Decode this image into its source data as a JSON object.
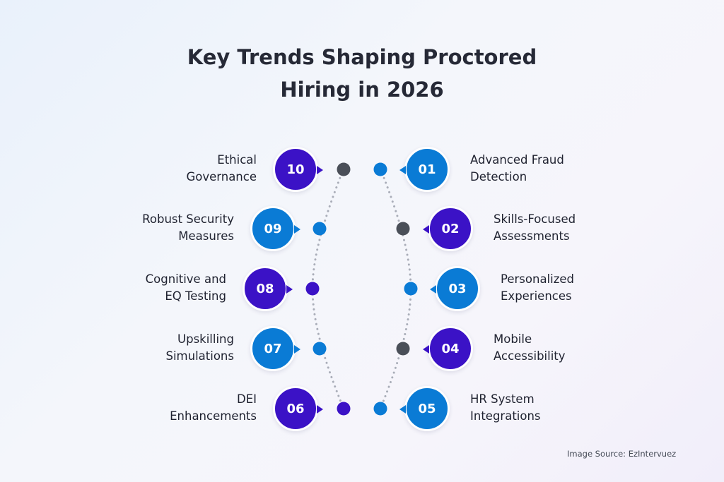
{
  "title_lines": [
    "Key Trends Shaping Proctored",
    "Hiring in 2026"
  ],
  "colors": {
    "purple": "#3b12c6",
    "blue": "#0a7bd5",
    "dark": "#4a4f58",
    "connector": "#a9adb8"
  },
  "trends": [
    {
      "num": "01",
      "lines": [
        "Advanced Fraud",
        "Detection"
      ],
      "side": "right",
      "circle_color": "blue",
      "dot_color": "blue"
    },
    {
      "num": "02",
      "lines": [
        "Skills-Focused",
        "Assessments"
      ],
      "side": "right",
      "circle_color": "purple",
      "dot_color": "dark"
    },
    {
      "num": "03",
      "lines": [
        "Personalized",
        "Experiences"
      ],
      "side": "right",
      "circle_color": "blue",
      "dot_color": "blue"
    },
    {
      "num": "04",
      "lines": [
        "Mobile",
        "Accessibility"
      ],
      "side": "right",
      "circle_color": "purple",
      "dot_color": "dark"
    },
    {
      "num": "05",
      "lines": [
        "HR System",
        "Integrations"
      ],
      "side": "right",
      "circle_color": "blue",
      "dot_color": "blue"
    },
    {
      "num": "06",
      "lines": [
        "DEI",
        "Enhancements"
      ],
      "side": "left",
      "circle_color": "purple",
      "dot_color": "purple"
    },
    {
      "num": "07",
      "lines": [
        "Upskilling",
        "Simulations"
      ],
      "side": "left",
      "circle_color": "blue",
      "dot_color": "blue"
    },
    {
      "num": "08",
      "lines": [
        "Cognitive and",
        "EQ Testing"
      ],
      "side": "left",
      "circle_color": "purple",
      "dot_color": "purple"
    },
    {
      "num": "09",
      "lines": [
        "Robust Security",
        "Measures"
      ],
      "side": "left",
      "circle_color": "blue",
      "dot_color": "blue"
    },
    {
      "num": "10",
      "lines": [
        "Ethical",
        "Governance"
      ],
      "side": "left",
      "circle_color": "purple",
      "dot_color": "dark"
    }
  ],
  "source": "Image Source: EzIntervuez"
}
